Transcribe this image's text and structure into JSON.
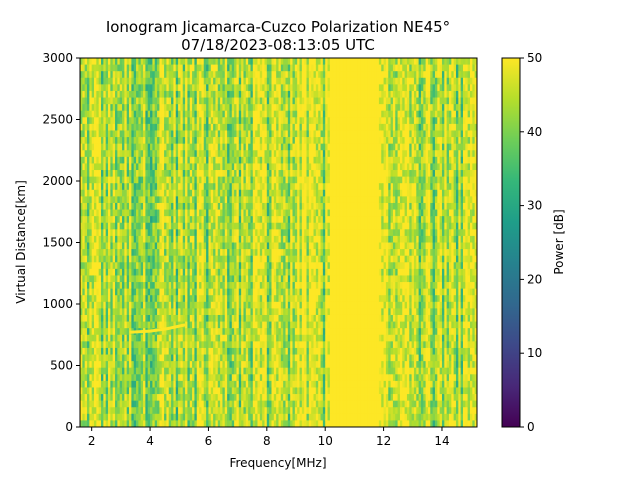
{
  "chart_data": {
    "type": "heatmap",
    "title_line1": "Ionogram Jicamarca-Cuzco Polarization NE45°",
    "title_line2": "07/18/2023-08:13:05 UTC",
    "xlabel": "Frequency[MHz]",
    "ylabel": "Virtual Distance[km]",
    "xlim": [
      1.6,
      15.2
    ],
    "ylim": [
      0,
      3000
    ],
    "xticks": [
      2,
      4,
      6,
      8,
      10,
      12,
      14
    ],
    "yticks": [
      0,
      500,
      1000,
      1500,
      2000,
      2500,
      3000
    ],
    "colorbar": {
      "label": "Power [dB]",
      "range": [
        0,
        50
      ],
      "ticks": [
        0,
        10,
        20,
        30,
        40,
        50
      ],
      "colormap": "viridis"
    },
    "grid": false,
    "features": {
      "saturated_band_mhz": [
        10.2,
        11.8
      ],
      "trace": [
        {
          "x": 3.3,
          "y": 770
        },
        {
          "x": 4.0,
          "y": 780
        },
        {
          "x": 4.6,
          "y": 800
        },
        {
          "x": 5.2,
          "y": 830
        }
      ]
    }
  },
  "colors": {
    "viridis": [
      "#440154",
      "#482878",
      "#3e4989",
      "#31688e",
      "#26828e",
      "#1f9e89",
      "#35b779",
      "#6ece58",
      "#b5de2b",
      "#fde725"
    ]
  }
}
